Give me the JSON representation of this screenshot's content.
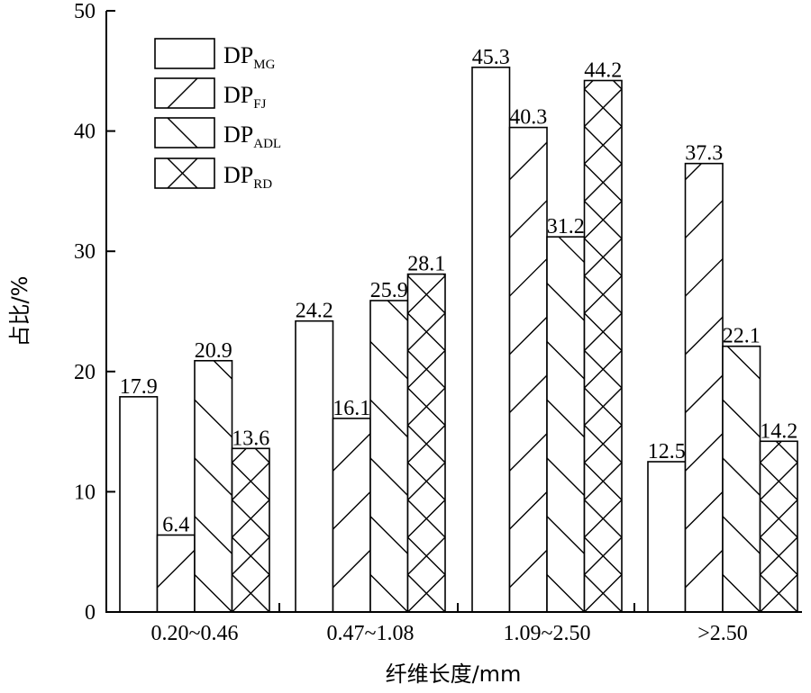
{
  "chart_data": {
    "type": "bar",
    "categories": [
      "0.20~0.46",
      "0.47~1.08",
      "1.09~2.50",
      ">2.50"
    ],
    "series": [
      {
        "name": "DP",
        "sub": "MG",
        "pattern": "none",
        "values": [
          17.9,
          24.2,
          45.3,
          12.5
        ]
      },
      {
        "name": "DP",
        "sub": "FJ",
        "pattern": "slash",
        "values": [
          6.4,
          16.1,
          40.3,
          37.3
        ]
      },
      {
        "name": "DP",
        "sub": "ADL",
        "pattern": "back",
        "values": [
          20.9,
          25.9,
          31.2,
          22.1
        ]
      },
      {
        "name": "DP",
        "sub": "RD",
        "pattern": "cross",
        "values": [
          13.6,
          28.1,
          44.2,
          14.2
        ]
      }
    ],
    "data_labels": [
      [
        "17.9",
        "24.2",
        "45.3",
        "12.5"
      ],
      [
        "6.4",
        "16.1",
        "40.3",
        "37.3"
      ],
      [
        "20.9",
        "25.9",
        "31.2",
        "22.1"
      ],
      [
        "13.6",
        "28.1",
        "44.2",
        "14.2"
      ]
    ],
    "ylim": [
      0,
      50
    ],
    "yticks": [
      "0",
      "10",
      "20",
      "30",
      "40",
      "50"
    ],
    "xlabel": "纤维长度/mm",
    "ylabel": "占比/%",
    "grid": false,
    "legend_position": "top-left"
  }
}
